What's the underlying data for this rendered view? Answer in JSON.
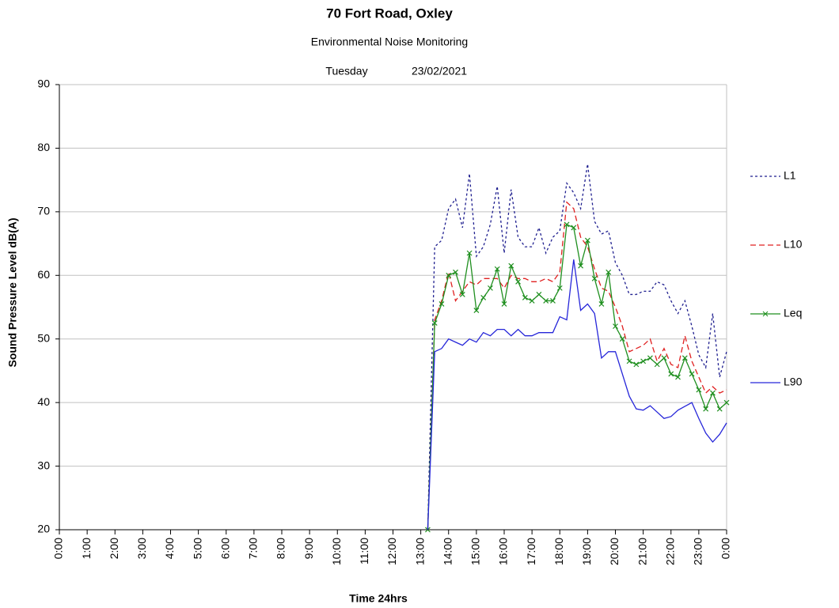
{
  "chart_data": {
    "type": "line",
    "title": "70 Fort Road, Oxley",
    "subtitle": "Environmental Noise Monitoring",
    "day": "Tuesday",
    "date": "23/02/2021",
    "xlabel": "Time 24hrs",
    "ylabel": "Sound Pressure Level dB(A)",
    "x": [
      13.25,
      13.5,
      13.75,
      14,
      14.25,
      14.5,
      14.75,
      15,
      15.25,
      15.5,
      15.75,
      16,
      16.25,
      16.5,
      16.75,
      17,
      17.25,
      17.5,
      17.75,
      18,
      18.25,
      18.5,
      18.75,
      19,
      19.25,
      19.5,
      19.75,
      20,
      20.25,
      20.5,
      20.75,
      21,
      21.25,
      21.5,
      21.75,
      22,
      22.25,
      22.5,
      22.75,
      23,
      23.25,
      23.5,
      23.75,
      24
    ],
    "series": [
      {
        "name": "L1",
        "color": "#1f1f8f",
        "style": "dashed",
        "values": [
          20,
          64.5,
          65.5,
          70.5,
          72,
          67.5,
          76,
          63,
          64.5,
          68,
          74,
          63.5,
          73.5,
          66,
          64.5,
          64.5,
          67.5,
          63.5,
          66,
          67,
          74.5,
          73,
          70.5,
          77.5,
          68.5,
          66.5,
          67,
          62,
          60,
          57,
          57,
          57.5,
          57.5,
          59,
          58.5,
          56,
          54,
          56,
          52,
          47.5,
          45.5,
          54,
          44,
          48
        ]
      },
      {
        "name": "L10",
        "color": "#e02020",
        "style": "dashed",
        "values": [
          20,
          53,
          56,
          60.5,
          56,
          57.5,
          59,
          58.5,
          59.5,
          59.5,
          59.5,
          58,
          60,
          59.5,
          59.5,
          59,
          59,
          59.5,
          59,
          60.5,
          71.5,
          70.5,
          66,
          64.5,
          61,
          58,
          57.5,
          55,
          52,
          48,
          48.5,
          49,
          50,
          46.5,
          48.5,
          46,
          45.5,
          50.5,
          46.5,
          44,
          41.5,
          42.5,
          41.5,
          42
        ]
      },
      {
        "name": "Leq",
        "color": "#1f8f1f",
        "style": "solid",
        "marker": "x",
        "values": [
          20,
          52.5,
          55.5,
          60,
          60.5,
          57,
          63.5,
          54.5,
          56.5,
          58,
          61,
          55.5,
          61.5,
          59,
          56.5,
          56,
          57,
          56,
          56,
          58,
          68,
          67.5,
          61.5,
          65.5,
          59.5,
          55.5,
          60.5,
          52,
          50,
          46.5,
          46,
          46.5,
          47,
          46,
          47,
          44.5,
          44,
          47,
          44.5,
          42,
          39,
          41.5,
          39,
          40
        ]
      },
      {
        "name": "L90",
        "color": "#2626d9",
        "style": "solid",
        "values": [
          20,
          48,
          48.5,
          50,
          49.5,
          49,
          50,
          49.5,
          51,
          50.5,
          51.5,
          51.5,
          50.5,
          51.5,
          50.5,
          50.5,
          51,
          51,
          51,
          53.5,
          53,
          62.5,
          54.5,
          55.5,
          54,
          47,
          48,
          48,
          44.5,
          41,
          39,
          38.8,
          39.5,
          38.5,
          37.5,
          37.8,
          38.8,
          39.4,
          40,
          37.5,
          35.2,
          33.8,
          35,
          36.8
        ]
      }
    ],
    "xlim": [
      0,
      24
    ],
    "xticks": [
      {
        "value": 0,
        "label": "0:00"
      },
      {
        "value": 1,
        "label": "1:00"
      },
      {
        "value": 2,
        "label": "2:00"
      },
      {
        "value": 3,
        "label": "3:00"
      },
      {
        "value": 4,
        "label": "4:00"
      },
      {
        "value": 5,
        "label": "5:00"
      },
      {
        "value": 6,
        "label": "6:00"
      },
      {
        "value": 7,
        "label": "7:00"
      },
      {
        "value": 8,
        "label": "8:00"
      },
      {
        "value": 9,
        "label": "9:00"
      },
      {
        "value": 10,
        "label": "10:00"
      },
      {
        "value": 11,
        "label": "11:00"
      },
      {
        "value": 12,
        "label": "12:00"
      },
      {
        "value": 13,
        "label": "13:00"
      },
      {
        "value": 14,
        "label": "14:00"
      },
      {
        "value": 15,
        "label": "15:00"
      },
      {
        "value": 16,
        "label": "16:00"
      },
      {
        "value": 17,
        "label": "17:00"
      },
      {
        "value": 18,
        "label": "18:00"
      },
      {
        "value": 19,
        "label": "19:00"
      },
      {
        "value": 20,
        "label": "20:00"
      },
      {
        "value": 21,
        "label": "21:00"
      },
      {
        "value": 22,
        "label": "22:00"
      },
      {
        "value": 23,
        "label": "23:00"
      },
      {
        "value": 24,
        "label": "0:00"
      }
    ],
    "ylim": [
      20,
      90
    ],
    "yticks": [
      20,
      30,
      40,
      50,
      60,
      70,
      80,
      90
    ],
    "grid": true,
    "legend": "right"
  }
}
